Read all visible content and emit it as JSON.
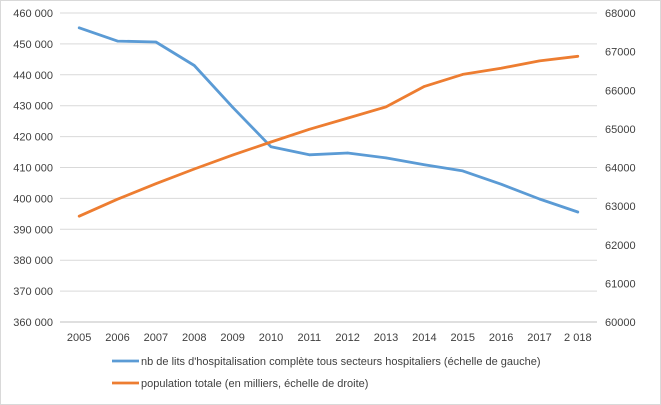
{
  "chart_data": {
    "type": "line",
    "categories": [
      "2005",
      "2006",
      "2007",
      "2008",
      "2009",
      "2010",
      "2011",
      "2012",
      "2013",
      "2014",
      "2015",
      "2016",
      "2017",
      "2 018"
    ],
    "left_axis": {
      "min": 360000,
      "max": 460000,
      "step": 10000,
      "tick_labels": [
        "360 000",
        "370 000",
        "380 000",
        "390 000",
        "400 000",
        "410 000",
        "420 000",
        "430 000",
        "440 000",
        "450 000",
        "460 000"
      ]
    },
    "right_axis": {
      "min": 60000,
      "max": 68000,
      "step": 1000,
      "tick_labels": [
        "60000",
        "61000",
        "62000",
        "63000",
        "64000",
        "65000",
        "66000",
        "67000",
        "68000"
      ]
    },
    "series": [
      {
        "name": "nb de lits d'hospitalisation complète tous secteurs hospitaliers (échelle de gauche)",
        "axis": "left",
        "color": "#5b9bd5",
        "values": [
          455200,
          450900,
          450600,
          443000,
          429500,
          416700,
          414100,
          414700,
          413100,
          410900,
          408900,
          404600,
          399800,
          395600
        ]
      },
      {
        "name": "population totale (en milliers, échelle de droite)",
        "axis": "right",
        "color": "#ed7d31",
        "values": [
          62740,
          63180,
          63580,
          63960,
          64320,
          64660,
          64990,
          65280,
          65570,
          66100,
          66410,
          66570,
          66760,
          66880
        ]
      }
    ],
    "grid": true,
    "legend_position": "bottom"
  }
}
